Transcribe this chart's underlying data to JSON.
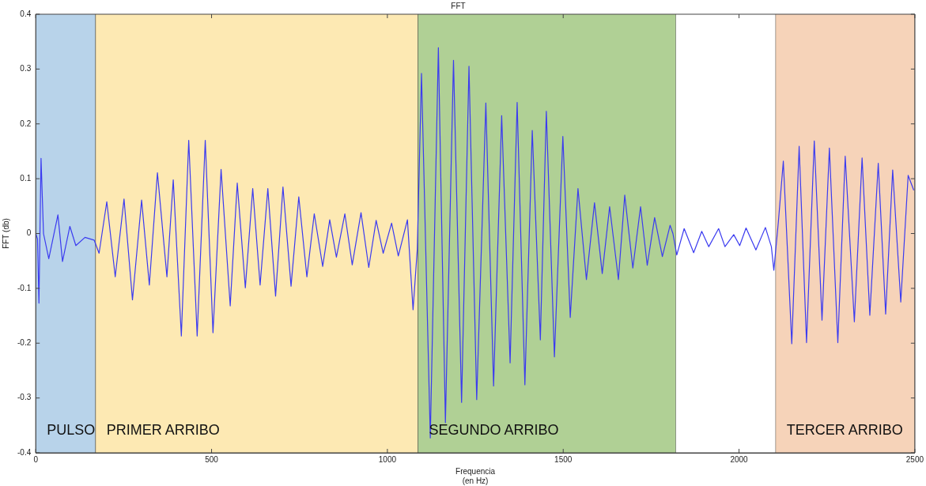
{
  "chart_data": {
    "type": "line",
    "title": "FFT",
    "xlabel": "Frequencia\n(en Hz)",
    "ylabel": "FFT (db)",
    "xlim": [
      0,
      2500
    ],
    "xticks": [
      0,
      500,
      1000,
      1500,
      2000,
      2500
    ],
    "ylim": [
      -0.4,
      0.4
    ],
    "yticks": [
      -0.4,
      -0.3,
      -0.2,
      -0.1,
      0,
      0.1,
      0.2,
      0.3,
      0.4
    ],
    "grid": false,
    "legend": false,
    "marker": "none",
    "line_style": "solid",
    "bands": [
      {
        "axis": "x",
        "from": 0,
        "to": 170,
        "label": "PULSO",
        "color": "#b8d3ea"
      },
      {
        "axis": "x",
        "from": 170,
        "to": 1087,
        "label": "PRIMER ARRIBO",
        "color": "#fde9b3"
      },
      {
        "axis": "x",
        "from": 1087,
        "to": 1820,
        "label": "SEGUNDO ARRIBO",
        "color": "#b0d095"
      },
      {
        "axis": "x",
        "from": 2104,
        "to": 2500,
        "label": "TERCER ARRIBO",
        "color": "#f6d3b9"
      }
    ],
    "series": [
      {
        "color": "#3b3bf0",
        "x": [
          0,
          5,
          9,
          15,
          22,
          37,
          63,
          76,
          97,
          114,
          140,
          166,
          180,
          202,
          226,
          251,
          275,
          301,
          323,
          346,
          373,
          391,
          414,
          435,
          459,
          482,
          504,
          527,
          553,
          573,
          596,
          617,
          638,
          660,
          682,
          703,
          726,
          748,
          771,
          792,
          816,
          836,
          855,
          879,
          900,
          925,
          947,
          968,
          988,
          1012,
          1031,
          1057,
          1073,
          1085,
          1097,
          1122,
          1145,
          1165,
          1188,
          1211,
          1232,
          1254,
          1280,
          1302,
          1325,
          1349,
          1369,
          1391,
          1412,
          1435,
          1452,
          1475,
          1499,
          1520,
          1542,
          1566,
          1589,
          1611,
          1632,
          1657,
          1675,
          1698,
          1720,
          1739,
          1760,
          1782,
          1804,
          1812,
          1823,
          1844,
          1871,
          1894,
          1914,
          1942,
          1960,
          1985,
          2002,
          2020,
          2048,
          2075,
          2092,
          2099,
          2112,
          2126,
          2150,
          2171,
          2192,
          2214,
          2236,
          2257,
          2281,
          2302,
          2328,
          2350,
          2372,
          2396,
          2417,
          2437,
          2460,
          2481,
          2497
        ],
        "values": [
          0,
          -0.01,
          -0.127,
          0.137,
          0,
          -0.046,
          0.034,
          -0.051,
          0.013,
          -0.022,
          -0.007,
          -0.012,
          -0.036,
          0.058,
          -0.079,
          0.063,
          -0.121,
          0.061,
          -0.094,
          0.111,
          -0.079,
          0.098,
          -0.187,
          0.17,
          -0.187,
          0.17,
          -0.181,
          0.117,
          -0.132,
          0.092,
          -0.099,
          0.082,
          -0.094,
          0.082,
          -0.114,
          0.085,
          -0.096,
          0.067,
          -0.079,
          0.036,
          -0.06,
          0.025,
          -0.043,
          0.036,
          -0.057,
          0.038,
          -0.062,
          0.024,
          -0.036,
          0.019,
          -0.041,
          0.025,
          -0.139,
          -0.029,
          0.292,
          -0.373,
          0.339,
          -0.345,
          0.316,
          -0.308,
          0.305,
          -0.303,
          0.238,
          -0.278,
          0.215,
          -0.236,
          0.239,
          -0.276,
          0.188,
          -0.194,
          0.223,
          -0.225,
          0.177,
          -0.153,
          0.082,
          -0.084,
          0.056,
          -0.073,
          0.049,
          -0.084,
          0.07,
          -0.063,
          0.049,
          -0.058,
          0.029,
          -0.042,
          0.015,
          0,
          -0.039,
          0.009,
          -0.035,
          0.004,
          -0.024,
          0.009,
          -0.024,
          -0.002,
          -0.022,
          0.01,
          -0.03,
          0.011,
          -0.024,
          -0.067,
          0.022,
          0.132,
          -0.201,
          0.159,
          -0.199,
          0.169,
          -0.158,
          0.156,
          -0.199,
          0.141,
          -0.161,
          0.138,
          -0.149,
          0.128,
          -0.147,
          0.116,
          -0.125,
          0.106,
          0.079
        ]
      }
    ]
  }
}
